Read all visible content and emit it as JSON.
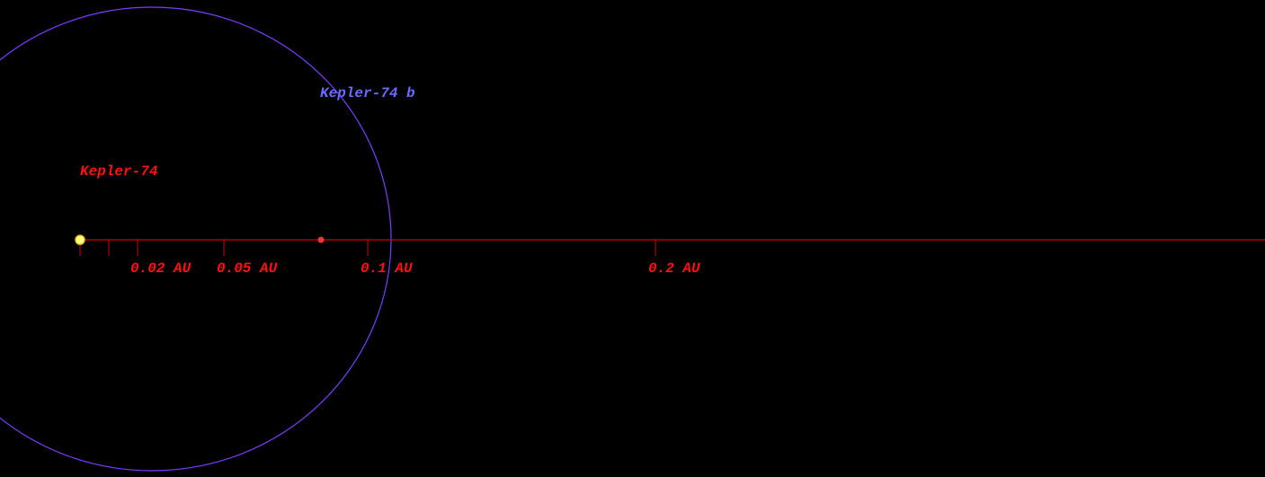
{
  "star": {
    "name": "Kepler-74"
  },
  "planet": {
    "name": "Kepler-74 b"
  },
  "scale": {
    "ticks": [
      {
        "label": "0.02 AU"
      },
      {
        "label": "0.05 AU"
      },
      {
        "label": "0.1 AU"
      },
      {
        "label": "0.2 AU"
      }
    ]
  }
}
